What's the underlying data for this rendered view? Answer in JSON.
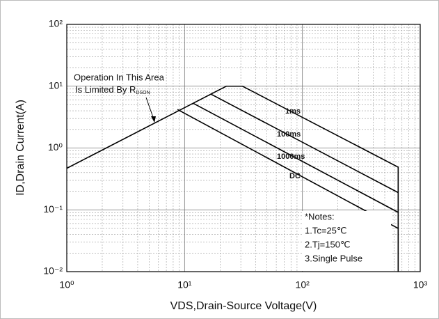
{
  "chart_data": {
    "type": "line",
    "xlabel": "VDS,Drain-Source Voltage(V)",
    "ylabel": "ID,Drain Current(A)",
    "xscale": "log",
    "yscale": "log",
    "xlim": [
      1,
      1000
    ],
    "ylim": [
      0.01,
      100
    ],
    "xticks": [
      {
        "value": 1,
        "label": "10⁰"
      },
      {
        "value": 10,
        "label": "10¹"
      },
      {
        "value": 100,
        "label": "10²"
      },
      {
        "value": 1000,
        "label": "10³"
      }
    ],
    "yticks": [
      {
        "value": 0.01,
        "label": "10⁻²"
      },
      {
        "value": 0.1,
        "label": "10⁻¹"
      },
      {
        "value": 1,
        "label": "10⁰"
      },
      {
        "value": 10,
        "label": "10¹"
      },
      {
        "value": 100,
        "label": "10²"
      }
    ],
    "grid": true,
    "minor_grid": true,
    "series": [
      {
        "name": "1ms",
        "color": "#000000",
        "x": [
          1,
          22.6,
          31,
          650,
          650
        ],
        "values": [
          0.47,
          10,
          10,
          0.49,
          0.01
        ]
      },
      {
        "name": "100ms",
        "color": "#000000",
        "x": [
          16.6,
          650
        ],
        "values": [
          7.5,
          0.19
        ]
      },
      {
        "name": "1000ms",
        "color": "#000000",
        "x": [
          11.8,
          650
        ],
        "values": [
          5.3,
          0.091
        ]
      },
      {
        "name": "DC",
        "color": "#000000",
        "x": [
          8.7,
          650
        ],
        "values": [
          4.2,
          0.05
        ]
      }
    ],
    "annotations": {
      "area_line1": "Operation In This Area",
      "area_line2": "Is Limited By R",
      "area_sub": "DSON",
      "notes": [
        "*Notes:",
        "1.Tc=25℃",
        "2.Tj=150℃",
        "3.Single Pulse"
      ]
    }
  }
}
